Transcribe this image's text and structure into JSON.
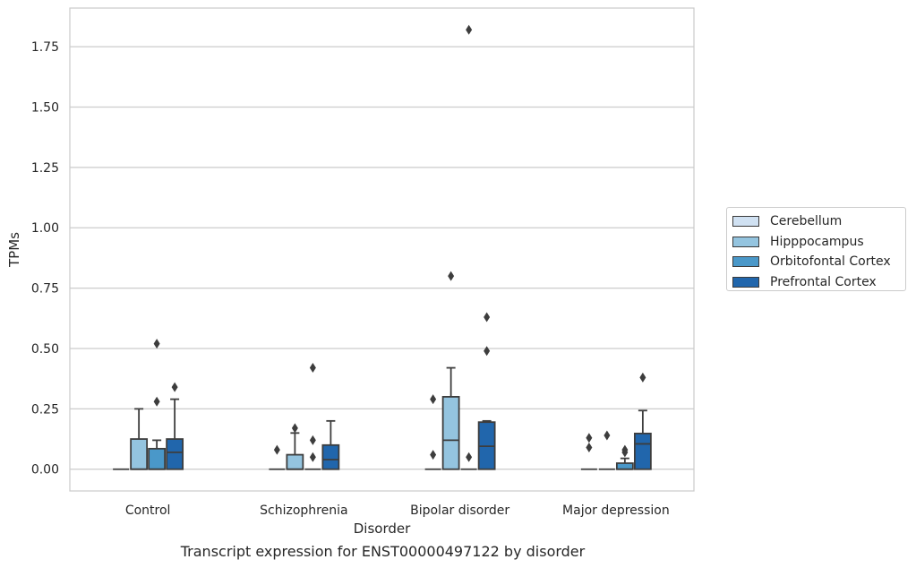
{
  "caption": "Transcript expression for ENST00000497122 by disorder",
  "chart_data": {
    "type": "boxplot",
    "xlabel": "Disorder",
    "ylabel": "TPMs",
    "ylim": [
      -0.09,
      1.91
    ],
    "yticks": [
      0.0,
      0.25,
      0.5,
      0.75,
      1.0,
      1.25,
      1.5,
      1.75
    ],
    "ytick_labels": [
      "0.00",
      "0.25",
      "0.50",
      "0.75",
      "1.00",
      "1.25",
      "1.50",
      "1.75"
    ],
    "grid": "horizontal",
    "legend_position": "right",
    "categories": [
      "Control",
      "Schizophrenia",
      "Bipolar disorder",
      "Major depression"
    ],
    "series": [
      {
        "name": "Cerebellum",
        "color": "#d0e1f2",
        "boxes": [
          {
            "q1": 0,
            "median": 0,
            "q3": 0,
            "whisker_low": 0,
            "whisker_high": 0,
            "outliers": []
          },
          {
            "q1": 0,
            "median": 0,
            "q3": 0,
            "whisker_low": 0,
            "whisker_high": 0,
            "outliers": [
              0.08
            ]
          },
          {
            "q1": 0,
            "median": 0,
            "q3": 0,
            "whisker_low": 0,
            "whisker_high": 0,
            "outliers": [
              0.06,
              0.29
            ]
          },
          {
            "q1": 0,
            "median": 0,
            "q3": 0,
            "whisker_low": 0,
            "whisker_high": 0,
            "outliers": [
              0.09,
              0.13
            ]
          }
        ]
      },
      {
        "name": "Hipppocampus",
        "color": "#94c4df",
        "boxes": [
          {
            "q1": 0,
            "median": 0,
            "q3": 0.125,
            "whisker_low": 0,
            "whisker_high": 0.25,
            "outliers": []
          },
          {
            "q1": 0,
            "median": 0,
            "q3": 0.06,
            "whisker_low": 0,
            "whisker_high": 0.15,
            "outliers": [
              0.17
            ]
          },
          {
            "q1": 0,
            "median": 0.12,
            "q3": 0.3,
            "whisker_low": 0,
            "whisker_high": 0.42,
            "outliers": [
              0.8
            ]
          },
          {
            "q1": 0,
            "median": 0,
            "q3": 0,
            "whisker_low": 0,
            "whisker_high": 0,
            "outliers": [
              0.14
            ]
          }
        ]
      },
      {
        "name": "Orbitofontal Cortex",
        "color": "#4a98c9",
        "boxes": [
          {
            "q1": 0,
            "median": 0,
            "q3": 0.085,
            "whisker_low": 0,
            "whisker_high": 0.12,
            "outliers": [
              0.28,
              0.52
            ]
          },
          {
            "q1": 0,
            "median": 0,
            "q3": 0,
            "whisker_low": 0,
            "whisker_high": 0,
            "outliers": [
              0.05,
              0.12,
              0.42
            ]
          },
          {
            "q1": 0,
            "median": 0,
            "q3": 0,
            "whisker_low": 0,
            "whisker_high": 0,
            "outliers": [
              0.05,
              1.82
            ]
          },
          {
            "q1": 0,
            "median": 0,
            "q3": 0.025,
            "whisker_low": 0,
            "whisker_high": 0.045,
            "outliers": [
              0.07,
              0.08
            ]
          }
        ]
      },
      {
        "name": "Prefrontal Cortex",
        "color": "#2166ac",
        "boxes": [
          {
            "q1": 0,
            "median": 0.07,
            "q3": 0.125,
            "whisker_low": 0,
            "whisker_high": 0.29,
            "outliers": [
              0.34
            ]
          },
          {
            "q1": 0,
            "median": 0.04,
            "q3": 0.1,
            "whisker_low": 0,
            "whisker_high": 0.2,
            "outliers": []
          },
          {
            "q1": 0,
            "median": 0.095,
            "q3": 0.195,
            "whisker_low": 0,
            "whisker_high": 0.2,
            "outliers": [
              0.49,
              0.63
            ]
          },
          {
            "q1": 0,
            "median": 0.105,
            "q3": 0.148,
            "whisker_low": 0,
            "whisker_high": 0.243,
            "outliers": [
              0.38
            ]
          }
        ]
      }
    ]
  }
}
